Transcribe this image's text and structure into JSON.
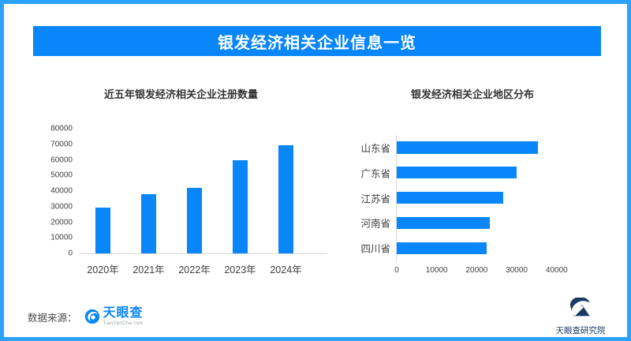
{
  "banner": {
    "title": "银发经济相关企业信息一览"
  },
  "chart_data": [
    {
      "type": "bar",
      "orientation": "vertical",
      "title": "近五年银发经济相关企业注册数量",
      "categories": [
        "2020年",
        "2021年",
        "2022年",
        "2023年",
        "2024年"
      ],
      "values": [
        29600,
        38000,
        42000,
        59600,
        69500
      ],
      "ylim": [
        0,
        80000
      ],
      "ytick_step": 10000,
      "xlabel": "",
      "ylabel": "",
      "grid": false,
      "legend": false
    },
    {
      "type": "bar",
      "orientation": "horizontal",
      "title": "银发经济相关企业地区分布",
      "categories": [
        "山东省",
        "广东省",
        "江苏省",
        "河南省",
        "四川省"
      ],
      "values": [
        35300,
        30000,
        26700,
        23300,
        22400
      ],
      "xlim": [
        0,
        40000
      ],
      "xtick_step": 10000,
      "xlabel": "",
      "ylabel": "",
      "grid": false,
      "legend": false
    }
  ],
  "footer": {
    "source_label": "数据来源：",
    "source_logo": {
      "name": "天眼查",
      "sub": "TianYanCha.com"
    },
    "research_logo": {
      "name": "天眼查研究院"
    }
  },
  "colors": {
    "accent": "#0886FA",
    "border": "#2BA2FD",
    "navy": "#1A3A66",
    "tyc_blue": "#0B86F8",
    "title_text": "#333333",
    "axis_text": "#404040",
    "grid_line": "#D9D9D9",
    "source_text": "#4A4A4A",
    "sub_text": "#9AA0A6"
  }
}
